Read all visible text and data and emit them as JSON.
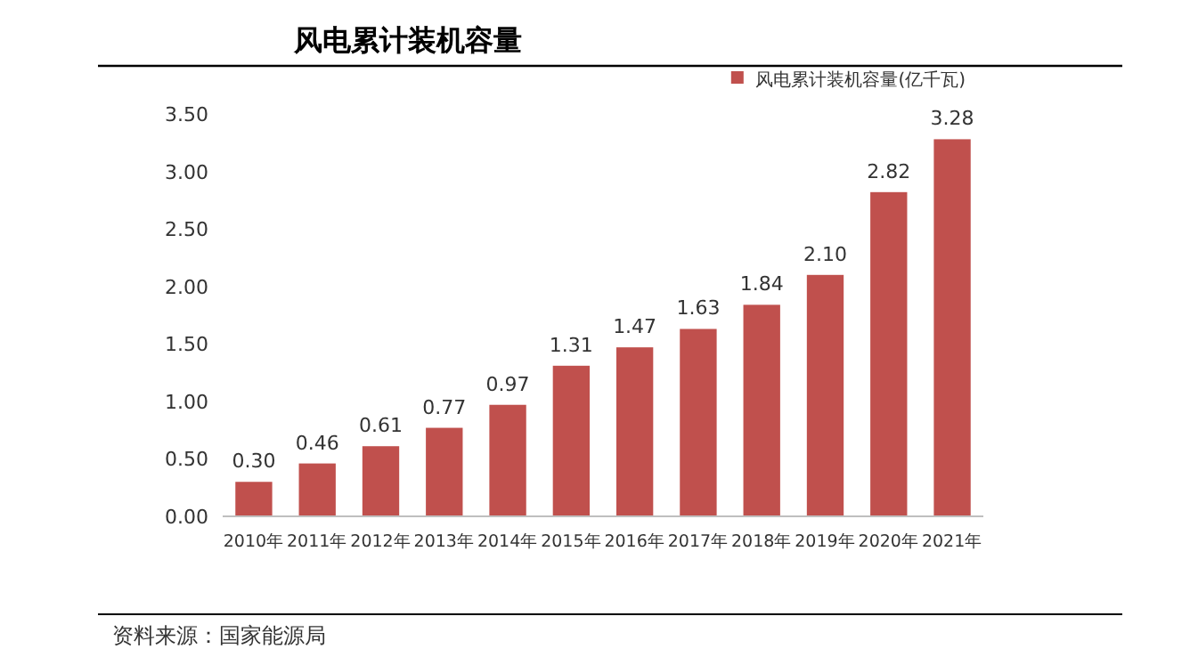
{
  "chart_data": {
    "type": "bar",
    "title": "风电累计装机容量",
    "categories": [
      "2010年",
      "2011年",
      "2012年",
      "2013年",
      "2014年",
      "2015年",
      "2016年",
      "2017年",
      "2018年",
      "2019年",
      "2020年",
      "2021年"
    ],
    "series": [
      {
        "name": "风电累计装机容量(亿千瓦)",
        "color": "#c0504d",
        "values": [
          0.3,
          0.46,
          0.61,
          0.77,
          0.97,
          1.31,
          1.47,
          1.63,
          1.84,
          2.1,
          2.82,
          3.28
        ],
        "value_labels": [
          "0.30",
          "0.46",
          "0.61",
          "0.77",
          "0.97",
          "1.31",
          "1.47",
          "1.63",
          "1.84",
          "2.10",
          "2.82",
          "3.28"
        ]
      }
    ],
    "ylim": [
      0,
      3.5
    ],
    "yticks": [
      {
        "value": 0,
        "label": "0.00"
      },
      {
        "value": 0.5,
        "label": "0.50"
      },
      {
        "value": 1,
        "label": "1.00"
      },
      {
        "value": 1.5,
        "label": "1.50"
      },
      {
        "value": 2,
        "label": "2.00"
      },
      {
        "value": 2.5,
        "label": "2.50"
      },
      {
        "value": 3,
        "label": "3.00"
      },
      {
        "value": 3.5,
        "label": "3.50"
      }
    ],
    "legend": "top right",
    "grid": false,
    "annotations": [
      "资料来源：国家能源局"
    ]
  }
}
